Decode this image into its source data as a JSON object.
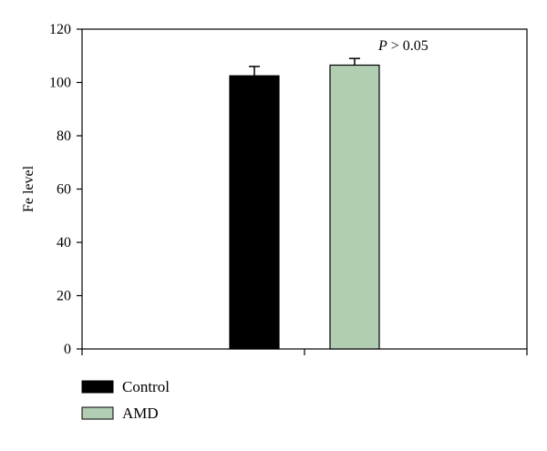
{
  "chart_data": {
    "type": "bar",
    "ylabel": "Fe level",
    "xlabel": "",
    "ylim": [
      0,
      120
    ],
    "yticks": [
      0,
      20,
      40,
      60,
      80,
      100,
      120
    ],
    "grid": false,
    "legend_position": "bottom-left",
    "series": [
      {
        "name": "Control",
        "value": 102.5,
        "error": 3.5,
        "color": "#000000"
      },
      {
        "name": "AMD",
        "value": 106.5,
        "error": 2.5,
        "color": "#b1cdb2"
      }
    ],
    "annotation": {
      "italic": "P",
      "rest": " > 0.05"
    }
  }
}
